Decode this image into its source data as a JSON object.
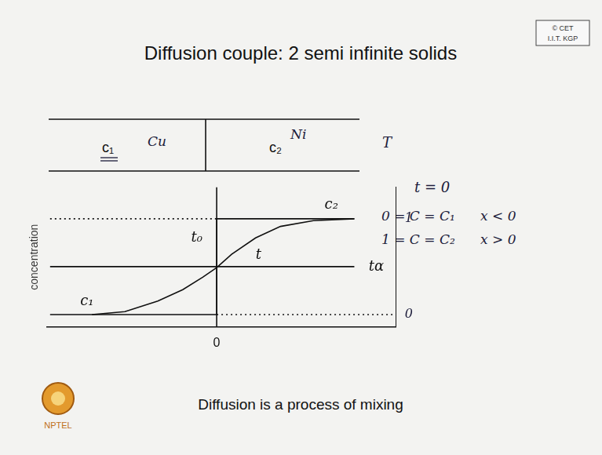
{
  "title": "Diffusion couple: 2 semi infinite solids",
  "logo": [
    "© CET",
    "I.I.T. KGP"
  ],
  "couple": {
    "left": {
      "label": "c₁",
      "metal": "Cu"
    },
    "right": {
      "label": "c₂",
      "metal": "Ni"
    },
    "temperature": "T"
  },
  "conditions": {
    "heading": "t = 0",
    "rows": [
      [
        "0 = C = C₁",
        "x < 0"
      ],
      [
        "1 = C = C₂",
        "x > 0"
      ]
    ]
  },
  "caption": "Diffusion is a process of mixing",
  "footer_logo": "NPTEL",
  "chart_data": {
    "type": "line",
    "y_label": "concentration",
    "xlim": [
      -1.7,
      1.8
    ],
    "xticks": [
      0
    ],
    "ylim": [
      -0.13,
      1.33
    ],
    "yticks": [
      0,
      1
    ],
    "grid": false,
    "legend": false,
    "series": [
      {
        "color": "#111111",
        "line_style": "solid",
        "x": [
          -1.67,
          0,
          0,
          1.38
        ],
        "values": [
          0,
          0,
          1,
          1
        ]
      },
      {
        "color": "#111111",
        "line_style": "solid",
        "x": [
          -1.25,
          -0.92,
          -0.59,
          -0.34,
          -0.14,
          0,
          0.15,
          0.39,
          0.64,
          0.97,
          1.38
        ],
        "values": [
          0,
          0.03,
          0.14,
          0.26,
          0.39,
          0.49,
          0.63,
          0.8,
          0.92,
          0.98,
          1.0
        ]
      },
      {
        "color": "#111111",
        "line_style": "solid",
        "x": [
          -1.67,
          1.38
        ],
        "values": [
          0.5,
          0.5
        ]
      },
      {
        "color": "#111111",
        "line_style": "dotted",
        "x": [
          -1.67,
          0
        ],
        "values": [
          1,
          1
        ]
      },
      {
        "color": "#111111",
        "line_style": "dotted",
        "x": [
          0,
          1.8
        ],
        "values": [
          0,
          0
        ]
      },
      {
        "color": "#111111",
        "line_style": "solid",
        "x": [
          0,
          0
        ],
        "values": [
          -0.13,
          1.33
        ]
      }
    ],
    "annotations": [
      {
        "text": "c₂",
        "x": 1.15,
        "y": 1.14
      },
      {
        "text": "c₁",
        "x": -1.3,
        "y": 0.14
      },
      {
        "text": "t₀",
        "x": -0.2,
        "y": 0.8
      },
      {
        "text": "t",
        "x": 0.42,
        "y": 0.62
      },
      {
        "text": "tα",
        "x": 1.6,
        "y": 0.5
      }
    ]
  }
}
